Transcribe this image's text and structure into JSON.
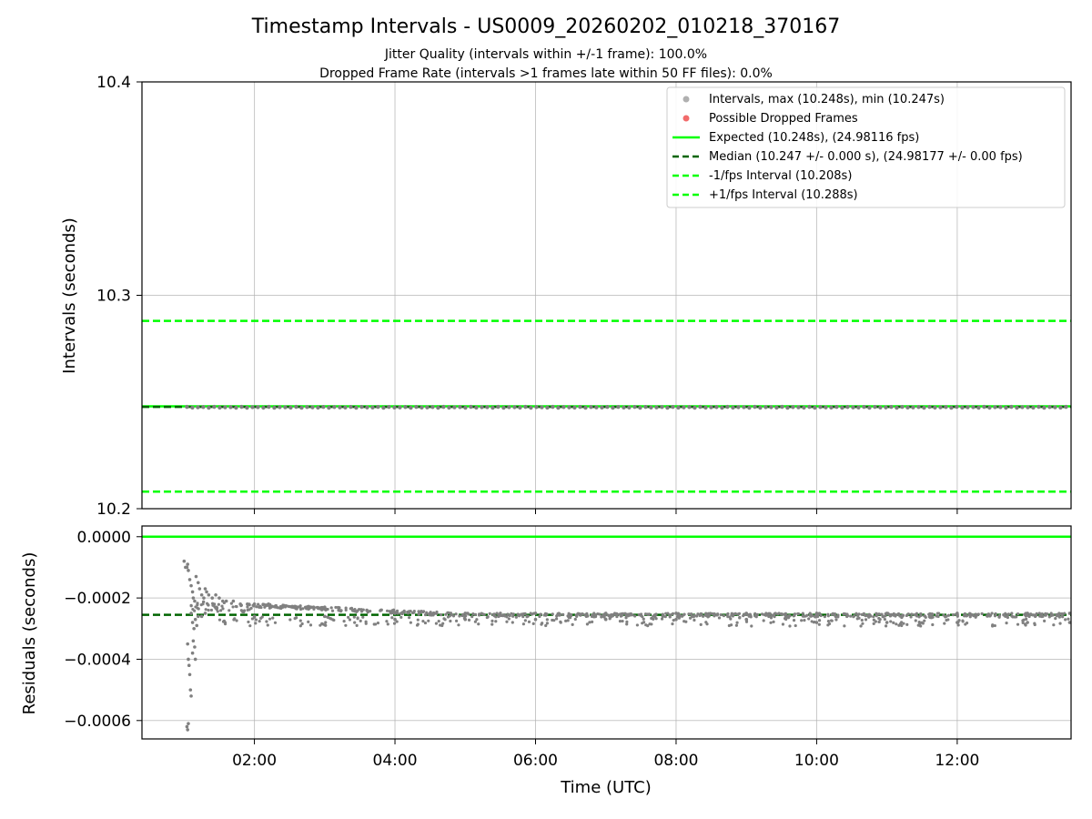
{
  "figure": {
    "title": "Timestamp Intervals - US0009_20260202_010218_370167",
    "subtitle_1": "Jitter Quality (intervals within +/-1 frame): 100.0%",
    "subtitle_2": "Dropped Frame Rate (intervals >1 frames late within 50 FF files): 0.0%"
  },
  "colors": {
    "points": "#808080",
    "legend_points": "#b0b0b0",
    "dropped": "#f26b6b",
    "expected": "#00ff00",
    "median": "#006400",
    "grid": "#b0b0b0"
  },
  "chart_data": [
    {
      "type": "scatter",
      "name": "intervals",
      "xlabel": "",
      "ylabel": "Intervals (seconds)",
      "xlim_hours": [
        0.4,
        13.62
      ],
      "ylim": [
        10.2,
        10.4
      ],
      "yticks": [
        {
          "value": 10.2,
          "label": "10.2"
        },
        {
          "value": 10.3,
          "label": "10.3"
        },
        {
          "value": 10.4,
          "label": "10.4"
        }
      ],
      "xticks": [
        {
          "value": 2,
          "label": "02:00"
        },
        {
          "value": 4,
          "label": "04:00"
        },
        {
          "value": 6,
          "label": "06:00"
        },
        {
          "value": 8,
          "label": "08:00"
        },
        {
          "value": 10,
          "label": "10:00"
        },
        {
          "value": 12,
          "label": "12:00"
        }
      ],
      "series": [
        {
          "name": "Intervals",
          "x_range_hours": [
            1.04,
            13.62
          ],
          "y_max": 10.248,
          "y_min": 10.247
        },
        {
          "name": "Possible Dropped Frames",
          "count": 0
        }
      ],
      "hlines": [
        {
          "name": "Expected",
          "value": 10.248,
          "style": "solid"
        },
        {
          "name": "Median",
          "value": 10.2477,
          "style": "dashed"
        },
        {
          "name": "-1/fps Interval",
          "value": 10.208,
          "style": "dashed"
        },
        {
          "name": "+1/fps Interval",
          "value": 10.288,
          "style": "dashed"
        }
      ],
      "legend": [
        {
          "label": "Intervals, max (10.248s), min (10.247s)",
          "kind": "dot"
        },
        {
          "label": "Possible Dropped Frames",
          "kind": "dot-red"
        },
        {
          "label": "Expected (10.248s), (24.98116 fps)",
          "kind": "solid-lime"
        },
        {
          "label": "Median (10.247 +/- 0.000 s), (24.98177 +/- 0.00 fps)",
          "kind": "dash-dark"
        },
        {
          "label": "-1/fps Interval (10.208s)",
          "kind": "dash-lime"
        },
        {
          "label": "+1/fps Interval (10.288s)",
          "kind": "dash-lime"
        }
      ],
      "legend_position": "top-right",
      "grid": true
    },
    {
      "type": "scatter",
      "name": "residuals",
      "xlabel": "Time (UTC)",
      "ylabel": "Residuals (seconds)",
      "xlim_hours": [
        0.4,
        13.62
      ],
      "ylim": [
        -0.00066,
        3.5e-05
      ],
      "yticks": [
        {
          "value": 0,
          "label": "0.0000"
        },
        {
          "value": -0.0002,
          "label": "−0.0002"
        },
        {
          "value": -0.0004,
          "label": "−0.0004"
        },
        {
          "value": -0.0006,
          "label": "−0.0006"
        }
      ],
      "xticks": [
        {
          "value": 2,
          "label": "02:00"
        },
        {
          "value": 4,
          "label": "04:00"
        },
        {
          "value": 6,
          "label": "06:00"
        },
        {
          "value": 8,
          "label": "08:00"
        },
        {
          "value": 10,
          "label": "10:00"
        },
        {
          "value": 12,
          "label": "12:00"
        }
      ],
      "hlines": [
        {
          "name": "Expected",
          "value": 0,
          "style": "solid"
        },
        {
          "name": "Median",
          "value": -0.000255,
          "style": "dashed"
        }
      ],
      "residual_points": [
        [
          1.0,
          -8e-05
        ],
        [
          1.02,
          -0.0001
        ],
        [
          1.04,
          -0.0001
        ],
        [
          1.05,
          -9e-05
        ],
        [
          1.06,
          -0.00011
        ],
        [
          1.08,
          -0.00014
        ],
        [
          1.1,
          -0.00016
        ],
        [
          1.12,
          -0.00018
        ],
        [
          1.13,
          -0.0002
        ],
        [
          1.15,
          -0.00021
        ],
        [
          1.17,
          -0.00013
        ],
        [
          1.2,
          -0.00015
        ],
        [
          1.22,
          -0.00017
        ],
        [
          1.25,
          -0.00019
        ],
        [
          1.28,
          -0.0002
        ],
        [
          1.3,
          -0.00017
        ],
        [
          1.32,
          -0.00018
        ],
        [
          1.35,
          -0.00019
        ],
        [
          1.4,
          -0.0002
        ],
        [
          1.45,
          -0.00019
        ],
        [
          1.5,
          -0.0002
        ],
        [
          1.55,
          -0.00021
        ],
        [
          1.6,
          -0.00021
        ],
        [
          1.7,
          -0.00021
        ],
        [
          1.8,
          -0.00022
        ],
        [
          1.9,
          -0.00022
        ],
        [
          2.0,
          -0.00022
        ],
        [
          2.2,
          -0.00022
        ],
        [
          2.4,
          -0.00023
        ],
        [
          2.6,
          -0.00023
        ],
        [
          2.8,
          -0.00023
        ],
        [
          3.0,
          -0.00023
        ],
        [
          3.2,
          -0.00024
        ],
        [
          3.4,
          -0.00024
        ],
        [
          3.6,
          -0.00024
        ],
        [
          3.8,
          -0.00024
        ],
        [
          4.0,
          -0.00025
        ],
        [
          4.5,
          -0.00025
        ],
        [
          5.0,
          -0.00025
        ],
        [
          5.5,
          -0.00025
        ],
        [
          6.0,
          -0.00025
        ],
        [
          7.0,
          -0.00025
        ],
        [
          8.0,
          -0.00025
        ],
        [
          9.0,
          -0.00025
        ],
        [
          10.0,
          -0.00025
        ],
        [
          11.0,
          -0.00025
        ],
        [
          12.0,
          -0.00025
        ],
        [
          13.0,
          -0.00025
        ],
        [
          13.6,
          -0.00025
        ],
        [
          1.1,
          -0.00025
        ],
        [
          1.12,
          -0.00028
        ],
        [
          1.14,
          -0.0003
        ],
        [
          1.16,
          -0.00027
        ],
        [
          1.18,
          -0.00029
        ],
        [
          1.2,
          -0.00026
        ],
        [
          1.25,
          -0.00026
        ],
        [
          1.3,
          -0.00025
        ],
        [
          2.0,
          -0.00026
        ],
        [
          3.0,
          -0.00026
        ],
        [
          4.0,
          -0.00027
        ],
        [
          5.0,
          -0.00027
        ],
        [
          6.0,
          -0.00027
        ],
        [
          7.0,
          -0.00027
        ],
        [
          8.0,
          -0.00027
        ],
        [
          9.0,
          -0.00027
        ],
        [
          10.0,
          -0.00028
        ],
        [
          11.0,
          -0.00028
        ],
        [
          12.0,
          -0.00028
        ],
        [
          13.0,
          -0.00028
        ],
        [
          13.6,
          -0.00028
        ],
        [
          1.05,
          -0.00035
        ],
        [
          1.06,
          -0.0004
        ],
        [
          1.07,
          -0.00042
        ],
        [
          1.08,
          -0.00045
        ],
        [
          1.09,
          -0.0005
        ],
        [
          1.1,
          -0.00052
        ],
        [
          1.12,
          -0.00038
        ],
        [
          1.13,
          -0.00034
        ],
        [
          1.15,
          -0.00036
        ],
        [
          1.16,
          -0.0004
        ],
        [
          1.04,
          -0.00062
        ],
        [
          1.05,
          -0.00063
        ],
        [
          1.06,
          -0.00061
        ]
      ]
    }
  ]
}
